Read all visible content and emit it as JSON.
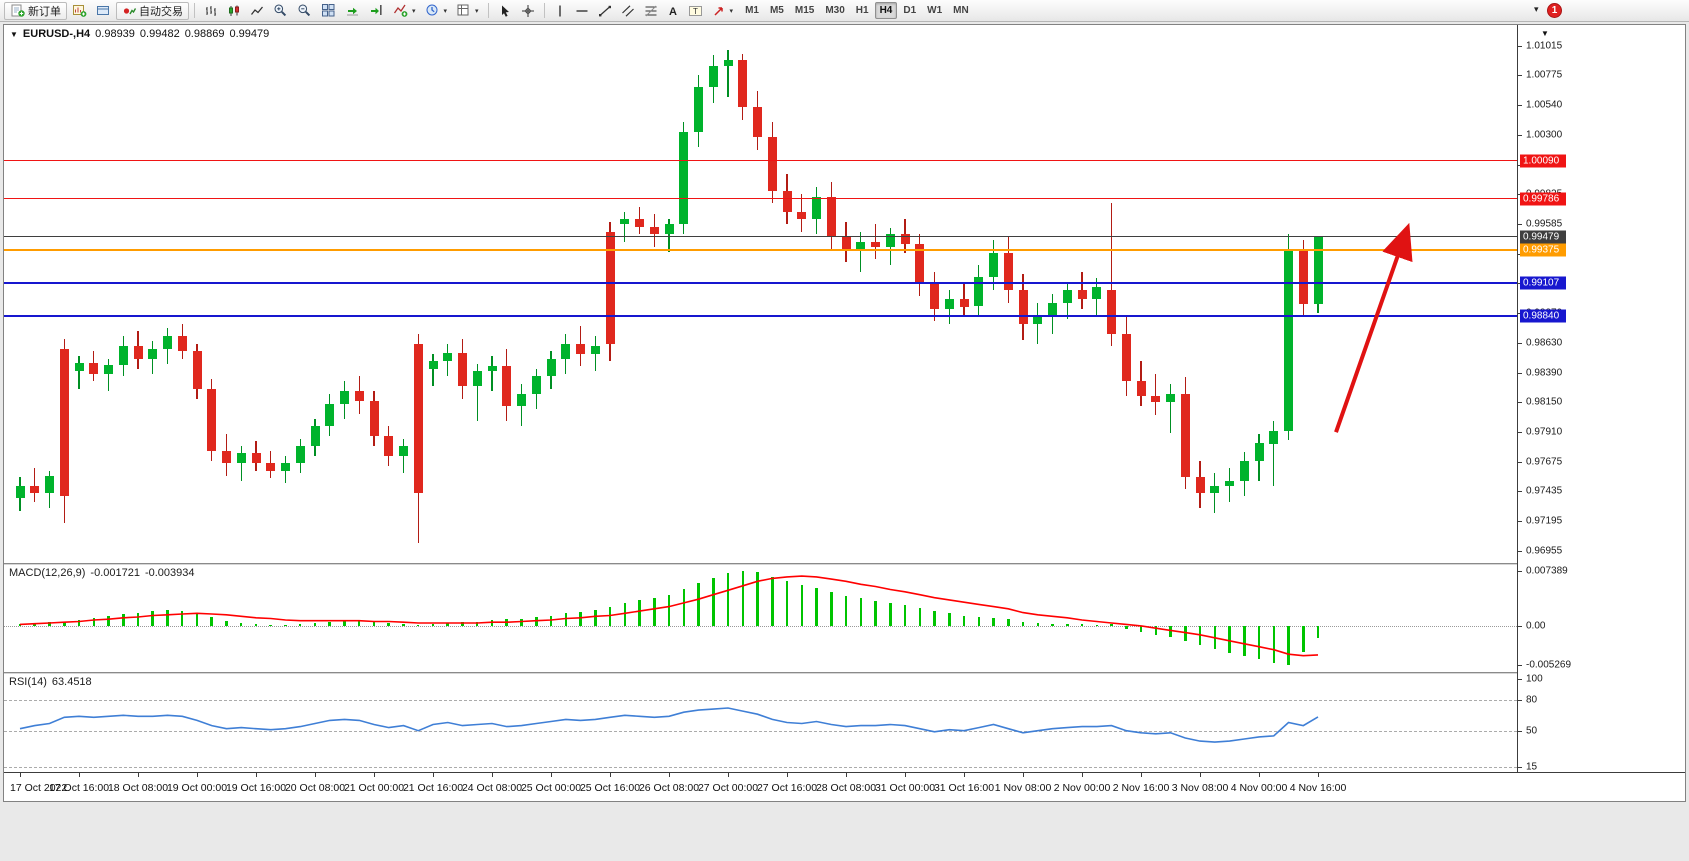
{
  "toolbar": {
    "new_order_label": "新订单",
    "auto_trading_label": "自动交易",
    "timeframes": [
      "M1",
      "M5",
      "M15",
      "M30",
      "H1",
      "H4",
      "D1",
      "W1",
      "MN"
    ],
    "active_timeframe": "H4",
    "notification_badge": "1",
    "overflow_icon": "▾"
  },
  "chart_header": {
    "dropdown_icon": "▼",
    "corner_dropdown_icon": "▼",
    "symbol_period": "EURUSD-,H4",
    "open": "0.98939",
    "high": "0.99482",
    "low": "0.98869",
    "close": "0.99479"
  },
  "price_axis": {
    "ticks": [
      "1.01015",
      "1.00775",
      "1.00540",
      "1.00300",
      "1.00060",
      "0.99825",
      "0.99585",
      "0.99345",
      "0.99110",
      "0.98870",
      "0.98630",
      "0.98390",
      "0.98150",
      "0.97910",
      "0.97675",
      "0.97435",
      "0.97195",
      "0.96955"
    ]
  },
  "hlines": [
    {
      "name": "resistance-line-1",
      "price": 1.0009,
      "label": "1.00090",
      "color": "#f01414",
      "width": 1
    },
    {
      "name": "resistance-line-2",
      "price": 0.99786,
      "label": "0.99786",
      "color": "#f01414",
      "width": 1
    },
    {
      "name": "current-price-line",
      "price": 0.99479,
      "label": "0.99479",
      "color": "#3f3f3f",
      "width": 1
    },
    {
      "name": "pivot-line-orange",
      "price": 0.99375,
      "label": "0.99375",
      "color": "#ff9c00",
      "width": 2
    },
    {
      "name": "support-line-1",
      "price": 0.99107,
      "label": "0.99107",
      "color": "#1717cf",
      "width": 2
    },
    {
      "name": "support-line-2",
      "price": 0.9884,
      "label": "0.98840",
      "color": "#1717cf",
      "width": 2
    }
  ],
  "macd_panel": {
    "title": "MACD(12,26,9)",
    "value_main": "-0.001721",
    "value_signal": "-0.003934",
    "axis_ticks": [
      "0.007389",
      "0.00",
      "-0.005269"
    ]
  },
  "rsi_panel": {
    "title": "RSI(14)",
    "value": "63.4518",
    "axis_ticks": [
      "100",
      "80",
      "50",
      "15"
    ],
    "levels": [
      80,
      50,
      15
    ]
  },
  "time_axis": {
    "candles_per_label": 4,
    "labels": [
      "17 Oct 2022",
      "17 Oct 16:00",
      "18 Oct 08:00",
      "19 Oct 00:00",
      "19 Oct 16:00",
      "20 Oct 08:00",
      "21 Oct 00:00",
      "21 Oct 16:00",
      "24 Oct 08:00",
      "25 Oct 00:00",
      "25 Oct 16:00",
      "26 Oct 08:00",
      "27 Oct 00:00",
      "27 Oct 16:00",
      "28 Oct 08:00",
      "31 Oct 00:00",
      "31 Oct 16:00",
      "1 Nov 08:00",
      "2 Nov 00:00",
      "2 Nov 16:00",
      "3 Nov 08:00",
      "4 Nov 00:00",
      "4 Nov 16:00"
    ]
  },
  "colors": {
    "bull": "#00b32c",
    "bear": "#e0281e",
    "bull_wick": "#008f23",
    "bear_wick": "#b21c14",
    "macd_hist": "#00c400",
    "macd_signal": "#ff0000",
    "rsi_line": "#3f7fd6",
    "arrow": "#e01212",
    "resistance": "#f01414",
    "support": "#1717cf",
    "pivot": "#ff9c00"
  },
  "annotations": [
    {
      "type": "arrow",
      "name": "bullish-arrow",
      "from_price": 0.9791,
      "to_price": 0.9947,
      "color": "#e01212"
    }
  ],
  "chart_data": [
    {
      "type": "candlestick",
      "title": "EURUSD- H4",
      "ylim": [
        0.9686,
        1.0118
      ],
      "candles": [
        [
          0.9738,
          0.9755,
          0.9728,
          0.9748
        ],
        [
          0.9748,
          0.9762,
          0.9735,
          0.9742
        ],
        [
          0.9742,
          0.976,
          0.973,
          0.9756
        ],
        [
          0.9858,
          0.9866,
          0.9718,
          0.974
        ],
        [
          0.984,
          0.9852,
          0.9826,
          0.9847
        ],
        [
          0.9847,
          0.9856,
          0.9832,
          0.9838
        ],
        [
          0.9838,
          0.985,
          0.9824,
          0.9845
        ],
        [
          0.9845,
          0.9868,
          0.9836,
          0.986
        ],
        [
          0.986,
          0.9872,
          0.9842,
          0.985
        ],
        [
          0.985,
          0.9864,
          0.9838,
          0.9858
        ],
        [
          0.9858,
          0.9875,
          0.9846,
          0.9868
        ],
        [
          0.9868,
          0.9878,
          0.985,
          0.9856
        ],
        [
          0.9856,
          0.9862,
          0.9818,
          0.9826
        ],
        [
          0.9826,
          0.9834,
          0.9768,
          0.9776
        ],
        [
          0.9776,
          0.979,
          0.9756,
          0.9766
        ],
        [
          0.9766,
          0.978,
          0.9752,
          0.9774
        ],
        [
          0.9774,
          0.9784,
          0.976,
          0.9766
        ],
        [
          0.9766,
          0.9776,
          0.9754,
          0.976
        ],
        [
          0.976,
          0.9772,
          0.975,
          0.9766
        ],
        [
          0.9766,
          0.9786,
          0.9758,
          0.978
        ],
        [
          0.978,
          0.9802,
          0.9772,
          0.9796
        ],
        [
          0.9796,
          0.9822,
          0.9788,
          0.9814
        ],
        [
          0.9814,
          0.9832,
          0.9802,
          0.9824
        ],
        [
          0.9824,
          0.9836,
          0.9806,
          0.9816
        ],
        [
          0.9816,
          0.9824,
          0.978,
          0.9788
        ],
        [
          0.9788,
          0.9796,
          0.9764,
          0.9772
        ],
        [
          0.9772,
          0.9786,
          0.9758,
          0.978
        ],
        [
          0.9862,
          0.987,
          0.9702,
          0.9742
        ],
        [
          0.9842,
          0.9854,
          0.9828,
          0.9848
        ],
        [
          0.9848,
          0.9862,
          0.9836,
          0.9855
        ],
        [
          0.9855,
          0.9866,
          0.9818,
          0.9828
        ],
        [
          0.9828,
          0.9846,
          0.98,
          0.984
        ],
        [
          0.984,
          0.9852,
          0.9824,
          0.9844
        ],
        [
          0.9844,
          0.9858,
          0.98,
          0.9812
        ],
        [
          0.9812,
          0.983,
          0.9796,
          0.9822
        ],
        [
          0.9822,
          0.9842,
          0.981,
          0.9836
        ],
        [
          0.9836,
          0.9856,
          0.9826,
          0.985
        ],
        [
          0.985,
          0.987,
          0.9838,
          0.9862
        ],
        [
          0.9862,
          0.9876,
          0.9844,
          0.9854
        ],
        [
          0.9854,
          0.9868,
          0.984,
          0.986
        ],
        [
          0.9952,
          0.996,
          0.9848,
          0.9862
        ],
        [
          0.9958,
          0.9968,
          0.9944,
          0.9962
        ],
        [
          0.9962,
          0.9972,
          0.995,
          0.9956
        ],
        [
          0.9956,
          0.9966,
          0.994,
          0.995
        ],
        [
          0.995,
          0.9962,
          0.9936,
          0.9958
        ],
        [
          0.9958,
          1.004,
          0.995,
          1.0032
        ],
        [
          1.0032,
          1.0078,
          1.002,
          1.0068
        ],
        [
          1.0068,
          1.0094,
          1.0055,
          1.0085
        ],
        [
          1.0085,
          1.0098,
          1.006,
          1.009
        ],
        [
          1.009,
          1.0095,
          1.0042,
          1.0052
        ],
        [
          1.0052,
          1.0065,
          1.0018,
          1.0028
        ],
        [
          1.0028,
          1.004,
          0.9975,
          0.9985
        ],
        [
          0.9985,
          0.9998,
          0.9958,
          0.9968
        ],
        [
          0.9968,
          0.9982,
          0.9952,
          0.9962
        ],
        [
          0.9962,
          0.9988,
          0.995,
          0.998
        ],
        [
          0.998,
          0.9992,
          0.9938,
          0.9948
        ],
        [
          0.9948,
          0.996,
          0.9928,
          0.9938
        ],
        [
          0.9938,
          0.9952,
          0.992,
          0.9944
        ],
        [
          0.9944,
          0.9958,
          0.993,
          0.994
        ],
        [
          0.994,
          0.9955,
          0.9925,
          0.995
        ],
        [
          0.995,
          0.9962,
          0.9935,
          0.9942
        ],
        [
          0.9942,
          0.995,
          0.99,
          0.991
        ],
        [
          0.991,
          0.992,
          0.988,
          0.989
        ],
        [
          0.989,
          0.9905,
          0.9878,
          0.9898
        ],
        [
          0.9898,
          0.991,
          0.9884,
          0.9892
        ],
        [
          0.9892,
          0.9925,
          0.9885,
          0.9916
        ],
        [
          0.9916,
          0.9945,
          0.9905,
          0.9935
        ],
        [
          0.9935,
          0.9948,
          0.9895,
          0.9905
        ],
        [
          0.9905,
          0.9918,
          0.9865,
          0.9878
        ],
        [
          0.9878,
          0.9895,
          0.9862,
          0.9885
        ],
        [
          0.9885,
          0.9902,
          0.987,
          0.9895
        ],
        [
          0.9895,
          0.9912,
          0.9882,
          0.9905
        ],
        [
          0.9905,
          0.992,
          0.989,
          0.9898
        ],
        [
          0.9898,
          0.9915,
          0.9885,
          0.9908
        ],
        [
          0.9905,
          0.9975,
          0.986,
          0.987
        ],
        [
          0.987,
          0.9885,
          0.982,
          0.9832
        ],
        [
          0.9832,
          0.9848,
          0.9812,
          0.982
        ],
        [
          0.982,
          0.9838,
          0.9805,
          0.9815
        ],
        [
          0.9815,
          0.983,
          0.979,
          0.9822
        ],
        [
          0.9822,
          0.9835,
          0.9745,
          0.9755
        ],
        [
          0.9755,
          0.9768,
          0.973,
          0.9742
        ],
        [
          0.9742,
          0.9758,
          0.9726,
          0.9748
        ],
        [
          0.9748,
          0.9762,
          0.9735,
          0.9752
        ],
        [
          0.9752,
          0.9775,
          0.974,
          0.9768
        ],
        [
          0.9768,
          0.979,
          0.9752,
          0.9782
        ],
        [
          0.9782,
          0.98,
          0.9748,
          0.9792
        ],
        [
          0.9792,
          0.995,
          0.9785,
          0.9938
        ],
        [
          0.9938,
          0.9945,
          0.9885,
          0.9894
        ],
        [
          0.98939,
          0.99482,
          0.98869,
          0.99479
        ]
      ]
    },
    {
      "type": "bar",
      "name": "MACD histogram",
      "ylim": [
        -0.0062,
        0.0082
      ],
      "values": [
        0.0002,
        0.0004,
        0.0006,
        0.0005,
        0.0008,
        0.0011,
        0.0013,
        0.0016,
        0.0018,
        0.002,
        0.0021,
        0.002,
        0.0017,
        0.0012,
        0.0007,
        0.0004,
        0.0002,
        0.0001,
        0.0001,
        0.0002,
        0.0004,
        0.0006,
        0.0008,
        0.0008,
        0.0006,
        0.0004,
        0.0002,
        0.0001,
        0.0002,
        0.0004,
        0.0005,
        0.0006,
        0.0008,
        0.0009,
        0.001,
        0.0012,
        0.0014,
        0.0017,
        0.0019,
        0.0021,
        0.0026,
        0.0031,
        0.0035,
        0.0038,
        0.0042,
        0.005,
        0.0058,
        0.0065,
        0.0071,
        0.0074,
        0.0072,
        0.0066,
        0.006,
        0.0055,
        0.0051,
        0.0046,
        0.0041,
        0.0037,
        0.0034,
        0.0031,
        0.0028,
        0.0024,
        0.002,
        0.0017,
        0.0014,
        0.0012,
        0.0011,
        0.0009,
        0.0006,
        0.0004,
        0.0003,
        0.0003,
        0.0002,
        0.0001,
        0.0002,
        -0.0004,
        -0.0008,
        -0.0012,
        -0.0015,
        -0.002,
        -0.0026,
        -0.0031,
        -0.0036,
        -0.004,
        -0.0045,
        -0.005,
        -0.0053,
        -0.0035,
        -0.0017
      ]
    },
    {
      "type": "line",
      "name": "MACD signal",
      "values": [
        0.0002,
        0.0003,
        0.0004,
        0.0005,
        0.0006,
        0.0008,
        0.0009,
        0.0011,
        0.0012,
        0.0014,
        0.0015,
        0.0016,
        0.0017,
        0.0016,
        0.0015,
        0.0013,
        0.0011,
        0.001,
        0.0008,
        0.0007,
        0.0007,
        0.0007,
        0.0007,
        0.0007,
        0.0006,
        0.0006,
        0.0005,
        0.0004,
        0.0004,
        0.0004,
        0.0004,
        0.0004,
        0.0005,
        0.0005,
        0.0006,
        0.0007,
        0.0008,
        0.001,
        0.0011,
        0.0013,
        0.0014,
        0.0017,
        0.002,
        0.0023,
        0.0026,
        0.0031,
        0.0036,
        0.0042,
        0.0048,
        0.0054,
        0.006,
        0.0064,
        0.0066,
        0.0067,
        0.0066,
        0.0063,
        0.006,
        0.0056,
        0.0053,
        0.0049,
        0.0046,
        0.0042,
        0.0038,
        0.0035,
        0.0032,
        0.0029,
        0.0026,
        0.0023,
        0.0018,
        0.0015,
        0.0013,
        0.0011,
        0.0008,
        0.0006,
        0.0004,
        0.0002,
        0.0,
        -0.0003,
        -0.0006,
        -0.0009,
        -0.0012,
        -0.0016,
        -0.002,
        -0.0024,
        -0.0028,
        -0.0032,
        -0.0038,
        -0.004,
        -0.0039
      ]
    },
    {
      "type": "line",
      "name": "RSI",
      "ylim": [
        10,
        105
      ],
      "values": [
        52,
        55,
        57,
        63,
        64,
        63,
        64,
        65,
        64,
        64,
        65,
        64,
        60,
        55,
        52,
        53,
        52,
        51,
        52,
        54,
        57,
        60,
        61,
        60,
        56,
        53,
        55,
        50,
        56,
        58,
        55,
        56,
        57,
        54,
        55,
        57,
        59,
        61,
        60,
        61,
        63,
        65,
        64,
        63,
        64,
        68,
        70,
        71,
        72,
        69,
        66,
        61,
        58,
        57,
        59,
        56,
        54,
        55,
        55,
        56,
        55,
        52,
        49,
        51,
        50,
        53,
        56,
        52,
        48,
        50,
        52,
        53,
        54,
        54,
        55,
        50,
        48,
        47,
        48,
        43,
        40,
        39,
        40,
        42,
        44,
        45,
        58,
        55,
        63.45
      ]
    }
  ]
}
